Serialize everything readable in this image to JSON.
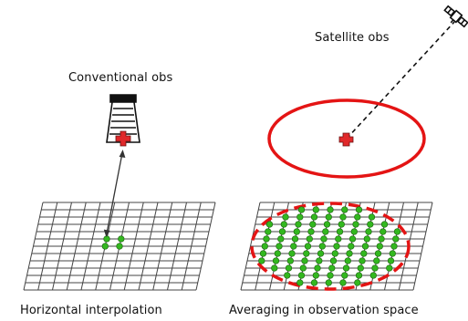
{
  "labels": {
    "satellite": "Satellite obs",
    "conventional": "Conventional obs",
    "interpolation": "Horizontal interpolation",
    "averaging": "Averaging in observation space"
  },
  "colors": {
    "grid": "#444444",
    "grid_point": "#33b81f",
    "grid_point_edge": "#1f6a12",
    "observation_cross": "#e0282a",
    "footprint_ring": "#e41414",
    "station": "#111111"
  },
  "icons": [
    "weather-station-icon",
    "satellite-icon",
    "observation-cross-icon"
  ]
}
